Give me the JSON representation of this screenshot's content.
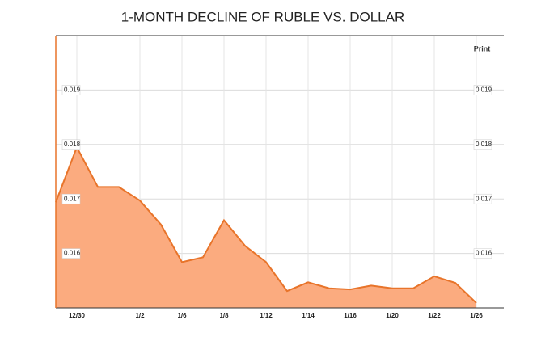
{
  "chart_data": {
    "type": "area",
    "title": "1-MONTH DECLINE OF RUBLE VS. DOLLAR",
    "categories": [
      null,
      "12/30",
      null,
      null,
      "1/2",
      null,
      "1/6",
      null,
      "1/8",
      null,
      "1/12",
      null,
      "1/14",
      null,
      "1/16",
      null,
      "1/20",
      null,
      "1/22",
      null,
      "1/26"
    ],
    "values": [
      0.01694,
      0.01795,
      0.01722,
      0.01722,
      0.01697,
      0.01653,
      0.01584,
      0.01593,
      0.01661,
      0.01614,
      0.01584,
      0.01531,
      0.01547,
      0.01536,
      0.01534,
      0.01541,
      0.01536,
      0.01536,
      0.01558,
      0.01546,
      0.01509
    ],
    "color": "#e8742a",
    "fill_color": "#fbab7f",
    "ylim": [
      0.015,
      0.02
    ],
    "yticks": [
      0.016,
      0.017,
      0.018,
      0.019
    ],
    "grid": true
  },
  "ui": {
    "print_button": "Print"
  }
}
